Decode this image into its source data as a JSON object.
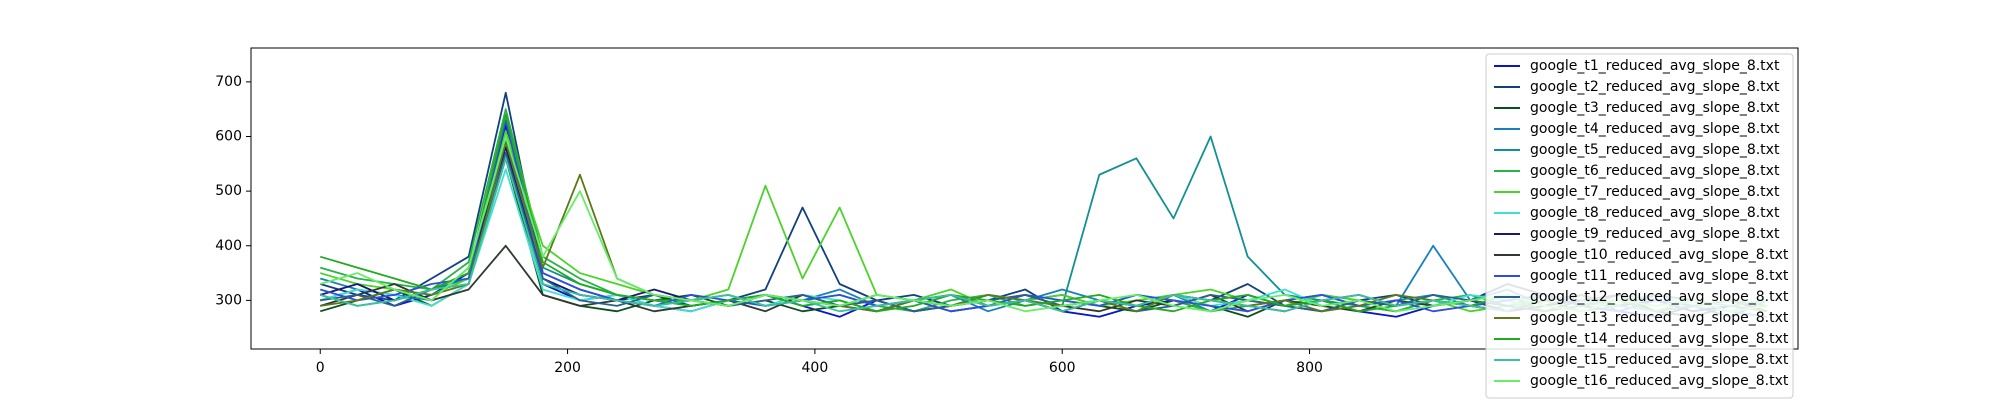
{
  "chart_data": {
    "type": "line",
    "x": [
      0,
      30,
      60,
      90,
      120,
      150,
      180,
      210,
      240,
      270,
      300,
      330,
      360,
      390,
      420,
      450,
      480,
      510,
      540,
      570,
      600,
      630,
      660,
      690,
      720,
      750,
      780,
      810,
      840,
      870,
      900,
      930,
      960,
      990,
      1020,
      1050,
      1080,
      1110,
      1140,
      1170
    ],
    "xlim": [
      -56,
      1195
    ],
    "xticks": [
      0,
      200,
      400,
      600,
      800
    ],
    "ylim": [
      211,
      762
    ],
    "yticks": [
      300,
      400,
      500,
      600,
      700
    ],
    "legend": "upper right",
    "series": [
      {
        "name": "google_t1_reduced_avg_slope_8.txt",
        "color": "#0a14c8",
        "values": [
          300,
          320,
          290,
          310,
          350,
          620,
          330,
          300,
          310,
          290,
          280,
          300,
          310,
          290,
          270,
          300,
          280,
          290,
          310,
          300,
          280,
          270,
          290,
          300,
          280,
          310,
          290,
          300,
          280,
          270,
          290,
          300,
          280,
          290,
          310,
          280,
          270,
          290,
          300,
          280
        ]
      },
      {
        "name": "google_t2_reduced_avg_slope_8.txt",
        "color": "#12407e",
        "values": [
          330,
          310,
          300,
          340,
          380,
          680,
          350,
          320,
          300,
          310,
          290,
          300,
          320,
          470,
          330,
          300,
          310,
          290,
          300,
          320,
          280,
          300,
          290,
          310,
          300,
          330,
          290,
          280,
          300,
          310,
          290,
          300,
          330,
          310,
          290,
          280,
          300,
          290,
          270,
          300
        ]
      },
      {
        "name": "google_t3_reduced_avg_slope_8.txt",
        "color": "#0b4f1e",
        "values": [
          280,
          300,
          320,
          290,
          330,
          560,
          310,
          290,
          280,
          300,
          310,
          290,
          300,
          280,
          290,
          310,
          300,
          280,
          290,
          300,
          310,
          290,
          280,
          300,
          290,
          270,
          300,
          310,
          290,
          280,
          300,
          290,
          280,
          310,
          290,
          300,
          280,
          270,
          290,
          300
        ]
      },
      {
        "name": "google_t4_reduced_avg_slope_8.txt",
        "color": "#1a7fbf",
        "values": [
          340,
          320,
          310,
          300,
          360,
          600,
          340,
          310,
          300,
          290,
          300,
          310,
          290,
          300,
          320,
          290,
          300,
          310,
          280,
          300,
          320,
          300,
          290,
          310,
          280,
          300,
          290,
          310,
          300,
          290,
          400,
          300,
          320,
          290,
          310,
          280,
          300,
          290,
          280,
          270
        ]
      },
      {
        "name": "google_t5_reduced_avg_slope_8.txt",
        "color": "#139090",
        "values": [
          310,
          290,
          300,
          320,
          340,
          590,
          360,
          330,
          310,
          300,
          290,
          300,
          310,
          290,
          300,
          280,
          300,
          290,
          310,
          300,
          290,
          530,
          560,
          450,
          600,
          380,
          310,
          300,
          290,
          300,
          310,
          290,
          300,
          280,
          290,
          310,
          300,
          280,
          290,
          300
        ]
      },
      {
        "name": "google_t6_reduced_avg_slope_8.txt",
        "color": "#2bb04a",
        "values": [
          360,
          340,
          330,
          320,
          370,
          650,
          380,
          340,
          310,
          300,
          300,
          310,
          290,
          300,
          310,
          290,
          280,
          300,
          310,
          290,
          300,
          290,
          310,
          300,
          280,
          290,
          300,
          310,
          290,
          280,
          300,
          310,
          290,
          300,
          280,
          290,
          310,
          300,
          280,
          290
        ]
      },
      {
        "name": "google_t7_reduced_avg_slope_8.txt",
        "color": "#4cd32b",
        "values": [
          350,
          330,
          320,
          310,
          340,
          610,
          400,
          350,
          330,
          310,
          300,
          320,
          510,
          340,
          470,
          310,
          300,
          320,
          290,
          300,
          310,
          290,
          300,
          310,
          320,
          300,
          290,
          310,
          300,
          290,
          300,
          280,
          290,
          310,
          300,
          290,
          280,
          300,
          290,
          280
        ]
      },
      {
        "name": "google_t8_reduced_avg_slope_8.txt",
        "color": "#40e0d0",
        "values": [
          300,
          320,
          310,
          290,
          330,
          540,
          320,
          300,
          310,
          290,
          280,
          300,
          290,
          310,
          300,
          280,
          300,
          290,
          310,
          300,
          290,
          300,
          280,
          310,
          290,
          300,
          320,
          290,
          280,
          300,
          290,
          310,
          300,
          280,
          290,
          300,
          310,
          290,
          280,
          300
        ]
      },
      {
        "name": "google_t9_reduced_avg_slope_8.txt",
        "color": "#191970",
        "values": [
          310,
          330,
          300,
          320,
          350,
          580,
          340,
          310,
          300,
          320,
          300,
          290,
          310,
          300,
          290,
          280,
          300,
          310,
          290,
          300,
          280,
          300,
          290,
          310,
          300,
          290,
          280,
          300,
          310,
          290,
          300,
          290,
          280,
          300,
          310,
          290,
          300,
          280,
          290,
          300
        ]
      },
      {
        "name": "google_t10_reduced_avg_slope_8.txt",
        "color": "#2f3a2f",
        "values": [
          290,
          310,
          330,
          300,
          320,
          400,
          310,
          290,
          300,
          280,
          290,
          300,
          280,
          310,
          290,
          300,
          280,
          290,
          300,
          310,
          290,
          280,
          300,
          290,
          310,
          280,
          300,
          290,
          280,
          300,
          290,
          300,
          280,
          290,
          300,
          310,
          280,
          290,
          300,
          280
        ]
      },
      {
        "name": "google_t11_reduced_avg_slope_8.txt",
        "color": "#2d4fdf",
        "values": [
          320,
          300,
          310,
          330,
          340,
          630,
          350,
          320,
          300,
          290,
          310,
          300,
          290,
          300,
          310,
          290,
          300,
          280,
          290,
          310,
          300,
          290,
          310,
          300,
          290,
          280,
          300,
          310,
          290,
          300,
          280,
          290,
          300,
          310,
          290,
          280,
          300,
          290,
          300,
          290
        ]
      },
      {
        "name": "google_t12_reduced_avg_slope_8.txt",
        "color": "#2a6090",
        "values": [
          300,
          310,
          290,
          320,
          330,
          570,
          340,
          300,
          290,
          310,
          300,
          290,
          300,
          310,
          290,
          300,
          280,
          290,
          300,
          310,
          290,
          300,
          280,
          290,
          310,
          300,
          290,
          280,
          300,
          290,
          310,
          300,
          290,
          280,
          300,
          290,
          310,
          300,
          280,
          290
        ]
      },
      {
        "name": "google_t13_reduced_avg_slope_8.txt",
        "color": "#5a7a1a",
        "values": [
          290,
          300,
          320,
          310,
          330,
          590,
          360,
          530,
          340,
          310,
          300,
          290,
          310,
          300,
          290,
          280,
          300,
          290,
          310,
          300,
          290,
          300,
          280,
          310,
          300,
          290,
          300,
          280,
          290,
          310,
          300,
          290,
          280,
          300,
          310,
          290,
          280,
          300,
          290,
          280
        ]
      },
      {
        "name": "google_t14_reduced_avg_slope_8.txt",
        "color": "#22aa22",
        "values": [
          380,
          360,
          340,
          320,
          350,
          640,
          370,
          330,
          310,
          300,
          290,
          300,
          310,
          290,
          300,
          280,
          290,
          310,
          300,
          290,
          300,
          310,
          290,
          280,
          300,
          310,
          290,
          300,
          280,
          290,
          300,
          290,
          310,
          280,
          290,
          300,
          280,
          290,
          300,
          290
        ]
      },
      {
        "name": "google_t15_reduced_avg_slope_8.txt",
        "color": "#3cc0a0",
        "values": [
          310,
          290,
          300,
          320,
          330,
          560,
          330,
          310,
          300,
          290,
          300,
          310,
          290,
          300,
          280,
          290,
          300,
          310,
          290,
          300,
          280,
          300,
          290,
          310,
          300,
          290,
          280,
          300,
          310,
          290,
          300,
          290,
          280,
          310,
          300,
          290,
          280,
          300,
          290,
          300
        ]
      },
      {
        "name": "google_t16_reduced_avg_slope_8.txt",
        "color": "#66ee66",
        "values": [
          330,
          350,
          320,
          300,
          360,
          600,
          380,
          500,
          340,
          310,
          300,
          290,
          310,
          300,
          290,
          310,
          300,
          290,
          300,
          280,
          290,
          300,
          310,
          290,
          280,
          300,
          310,
          290,
          300,
          280,
          290,
          300,
          310,
          290,
          280,
          300,
          290,
          300,
          280,
          290
        ]
      }
    ]
  }
}
